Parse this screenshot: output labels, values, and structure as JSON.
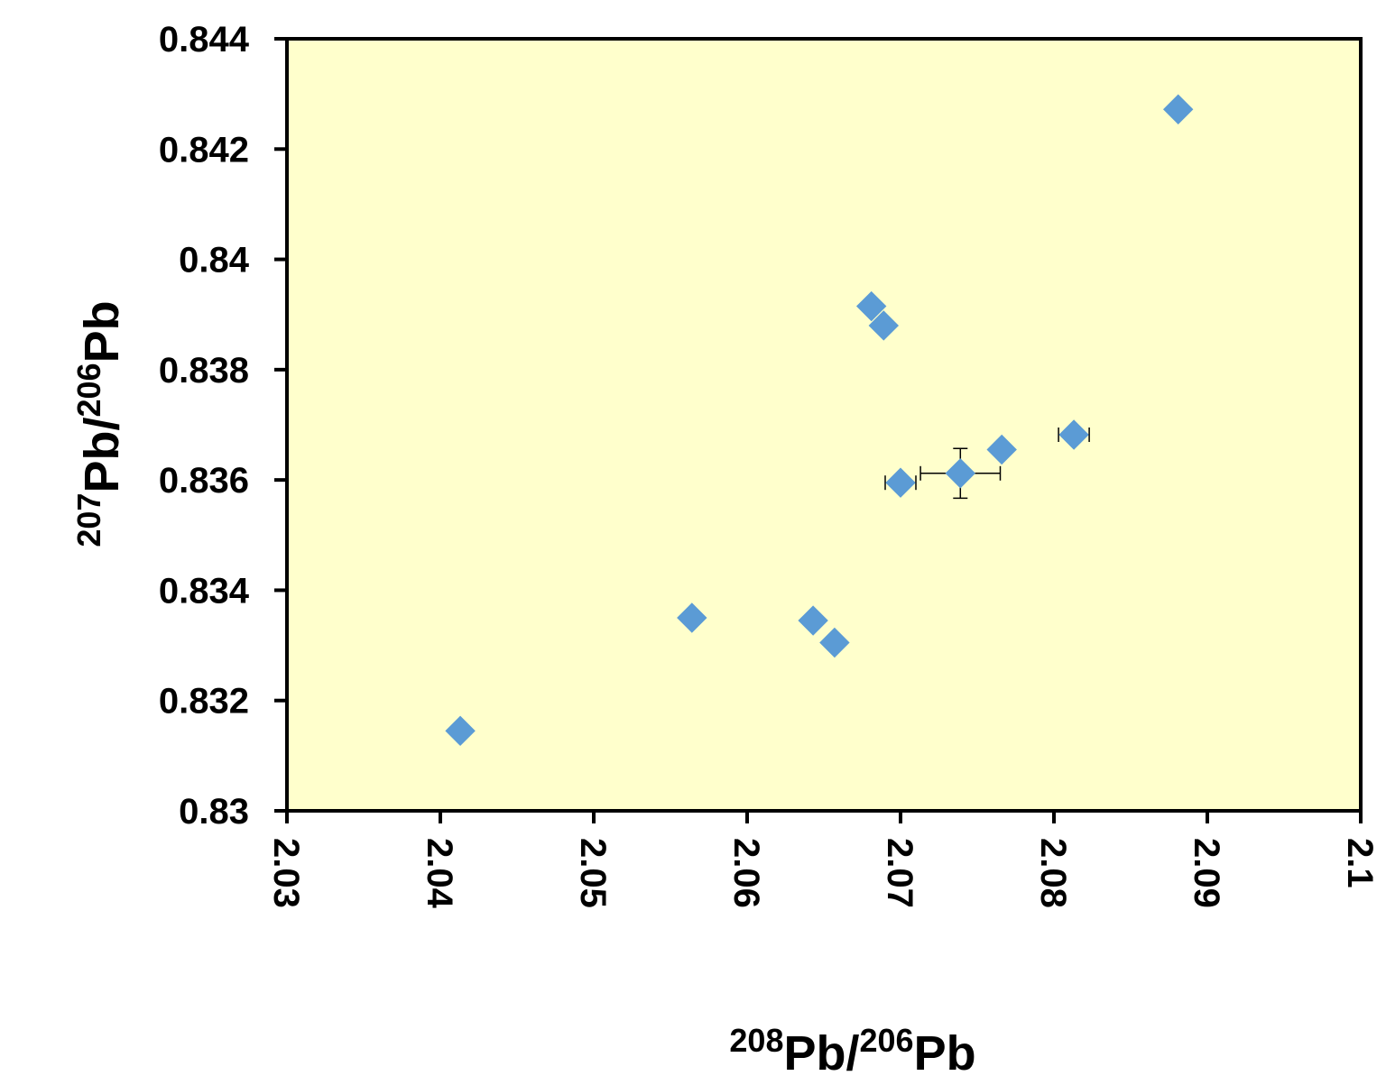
{
  "chart_data": {
    "type": "scatter",
    "xlabel": {
      "sup1": "208",
      "main1": "Pb/",
      "sup2": "206",
      "main2": "Pb"
    },
    "ylabel": {
      "sup1": "207",
      "main1": "Pb/",
      "sup2": "206",
      "main2": "Pb"
    },
    "xlim": [
      2.03,
      2.1
    ],
    "ylim": [
      0.83,
      0.844
    ],
    "x_ticks": [
      "2.03",
      "2.04",
      "2.05",
      "2.06",
      "2.07",
      "2.08",
      "2.09",
      "2.1"
    ],
    "y_ticks": [
      "0.83",
      "0.832",
      "0.834",
      "0.836",
      "0.838",
      "0.84",
      "0.842",
      "0.844"
    ],
    "grid": false,
    "legend": "none",
    "colors": {
      "plot_background": "#FFFFCC",
      "marker": "#5B9BD5",
      "axis": "#000000"
    },
    "series": [
      {
        "marker": "diamond",
        "points": [
          {
            "x": 2.0413,
            "y": 0.83145
          },
          {
            "x": 2.0564,
            "y": 0.8335
          },
          {
            "x": 2.0643,
            "y": 0.83345,
            "yerr": 5e-05,
            "xerr": 0.0001
          },
          {
            "x": 2.0657,
            "y": 0.83305
          },
          {
            "x": 2.0681,
            "y": 0.83915
          },
          {
            "x": 2.0689,
            "y": 0.8388
          },
          {
            "x": 2.07,
            "y": 0.83595,
            "xerr": 0.001
          },
          {
            "x": 2.0739,
            "y": 0.83612,
            "xerr": 0.0026,
            "yerr": 0.00045
          },
          {
            "x": 2.0766,
            "y": 0.83655
          },
          {
            "x": 2.0813,
            "y": 0.83682,
            "xerr": 0.001,
            "yerr": 0.0001
          },
          {
            "x": 2.0881,
            "y": 0.84272
          }
        ]
      }
    ]
  }
}
